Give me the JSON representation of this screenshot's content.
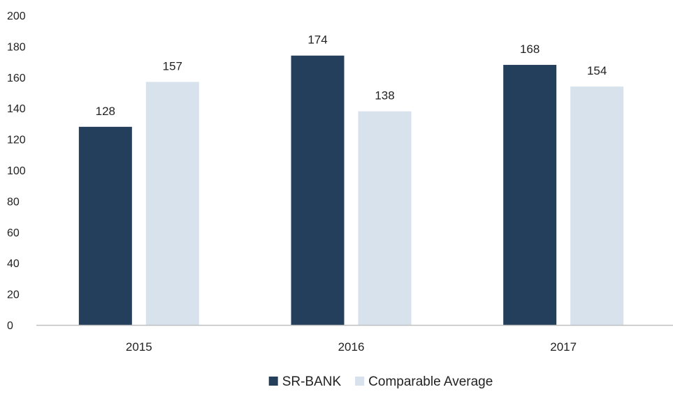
{
  "chart_data": {
    "type": "bar",
    "categories": [
      "2015",
      "2016",
      "2017"
    ],
    "series": [
      {
        "name": "SR-BANK",
        "values": [
          128,
          174,
          168
        ],
        "color": "#243f5c"
      },
      {
        "name": "Comparable Average",
        "values": [
          157,
          138,
          154
        ],
        "color": "#d7e2ed"
      }
    ],
    "ylim": [
      0,
      200
    ],
    "yticks": [
      0,
      20,
      40,
      60,
      80,
      100,
      120,
      140,
      160,
      180,
      200
    ],
    "data_labels": true,
    "grid": false,
    "legend_position": "bottom-center",
    "axis_color": "#bfbfbf"
  }
}
